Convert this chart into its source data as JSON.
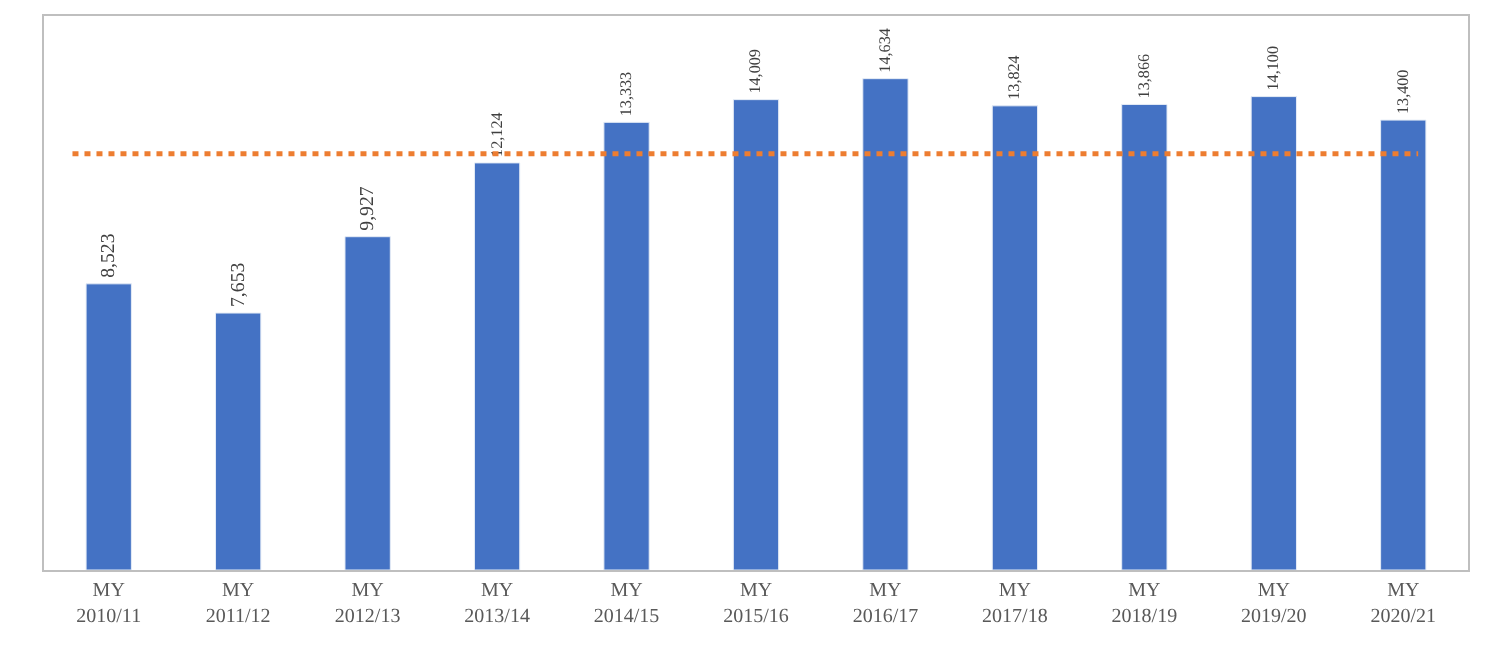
{
  "chart_data": {
    "type": "bar",
    "categories": [
      "MY\n2010/11",
      "MY\n2011/12",
      "MY\n2012/13",
      "MY\n2013/14",
      "MY\n2014/15",
      "MY\n2015/16",
      "MY\n2016/17",
      "MY\n2017/18",
      "MY\n2018/19",
      "MY\n2019/20",
      "MY\n2020/21"
    ],
    "values": [
      8523,
      7653,
      9927,
      12124,
      13333,
      14009,
      14634,
      13824,
      13866,
      14100,
      13400
    ],
    "value_labels": [
      "8,523",
      "7,653",
      "9,927",
      "12,124",
      "13,333",
      "14,009",
      "14,634",
      "13,824",
      "13,866",
      "14,100",
      "13,400"
    ],
    "color": "#4472c4",
    "ylim": [
      0,
      16500
    ],
    "tick_labels": "x",
    "legend": false,
    "ref_lines": [
      {
        "axis": "y",
        "value": 12400,
        "color": "#ed7d31",
        "line_style": "dotted"
      }
    ]
  }
}
